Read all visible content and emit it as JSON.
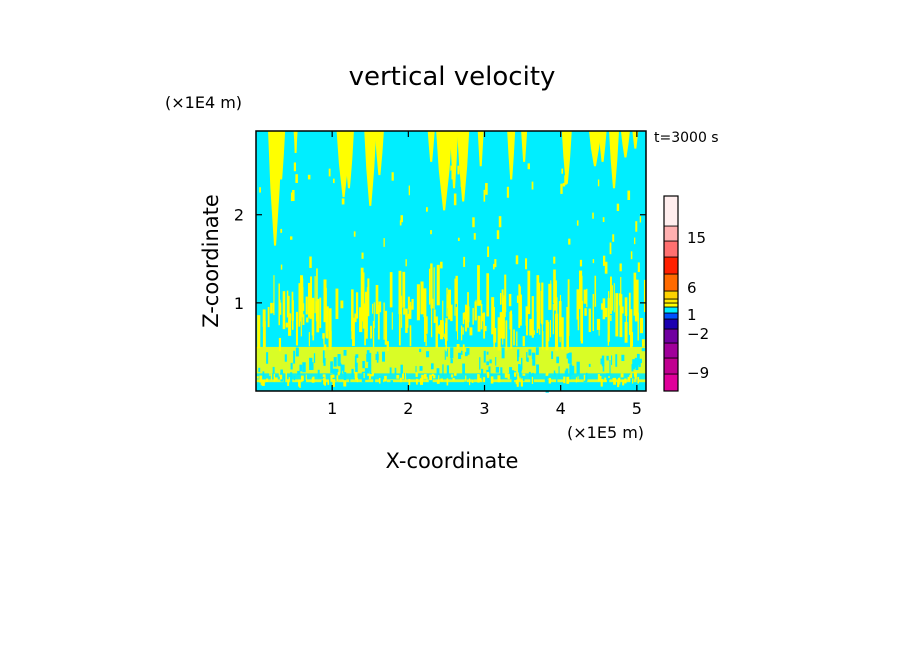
{
  "chart_data": {
    "type": "heatmap",
    "title": "vertical velocity",
    "xlabel": "X-coordinate",
    "ylabel": "Z-coordinate",
    "x_unit": "(×1E5 m)",
    "y_unit": "(×1E4 m)",
    "time_label": "t=3000 s",
    "xlim": [
      0,
      5.12
    ],
    "ylim": [
      0,
      2.95
    ],
    "x_ticks": [
      1,
      2,
      3,
      4,
      5
    ],
    "y_ticks": [
      1,
      2
    ],
    "colorbar": {
      "labels": [
        "15",
        "6",
        "1",
        "-2",
        "-9"
      ],
      "levels": [
        {
          "color": "#e0009a"
        },
        {
          "color": "#c00090"
        },
        {
          "color": "#a0009a"
        },
        {
          "color": "#7000a0"
        },
        {
          "color": "#1c00b0"
        },
        {
          "color": "#0050ff"
        },
        {
          "color": "#00eeff"
        },
        {
          "color": "#ffff00"
        },
        {
          "color": "#ffea00"
        },
        {
          "color": "#ffd200"
        },
        {
          "color": "#ff6a00"
        },
        {
          "color": "#ff2000"
        },
        {
          "color": "#ff7070"
        },
        {
          "color": "#ffb0b0"
        },
        {
          "color": "#ffeeee"
        }
      ]
    },
    "field": {
      "background_color": "#00eeff",
      "highlight_color": "#ffff00",
      "description": "cyan field with yellow updraft streaks; dense band near z 0.1–0.5, tall plumes reaching the top"
    }
  }
}
